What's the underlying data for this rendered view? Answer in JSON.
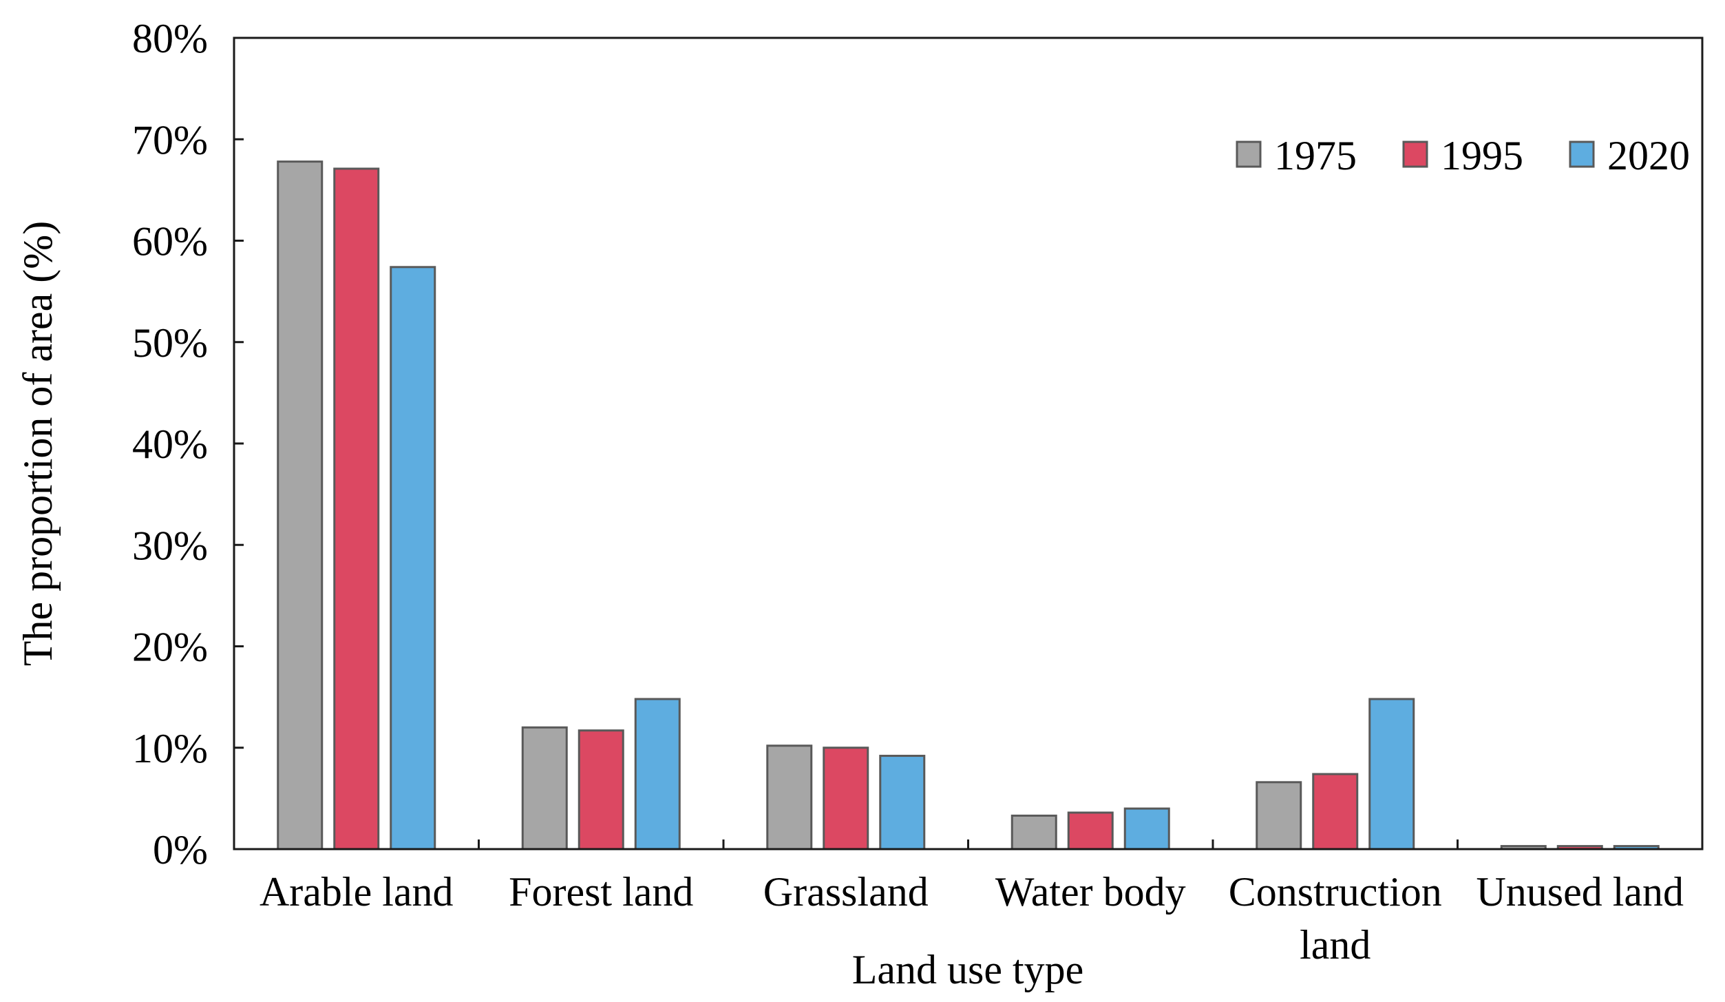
{
  "chart_data": {
    "type": "bar",
    "title": "",
    "xlabel": "Land use type",
    "ylabel": "The proportion of area (%)",
    "ylim": [
      0,
      80
    ],
    "yticks": [
      "0%",
      "10%",
      "20%",
      "30%",
      "40%",
      "50%",
      "60%",
      "70%",
      "80%"
    ],
    "ytick_values": [
      0,
      10,
      20,
      30,
      40,
      50,
      60,
      70,
      80
    ],
    "categories": [
      [
        "Arable land"
      ],
      [
        "Forest land"
      ],
      [
        "Grassland"
      ],
      [
        "Water body"
      ],
      [
        "Construction",
        "land"
      ],
      [
        "Unused land"
      ]
    ],
    "series": [
      {
        "name": "1975",
        "color": "#a6a6a6",
        "values": [
          67.8,
          12.0,
          10.2,
          3.3,
          6.6,
          0.3
        ]
      },
      {
        "name": "1995",
        "color": "#dc4862",
        "values": [
          67.1,
          11.7,
          10.0,
          3.6,
          7.4,
          0.3
        ]
      },
      {
        "name": "2020",
        "color": "#5eade0",
        "values": [
          57.4,
          14.8,
          9.2,
          4.0,
          14.8,
          0.3
        ]
      }
    ],
    "legend_position": "top-right",
    "grid": false
  }
}
